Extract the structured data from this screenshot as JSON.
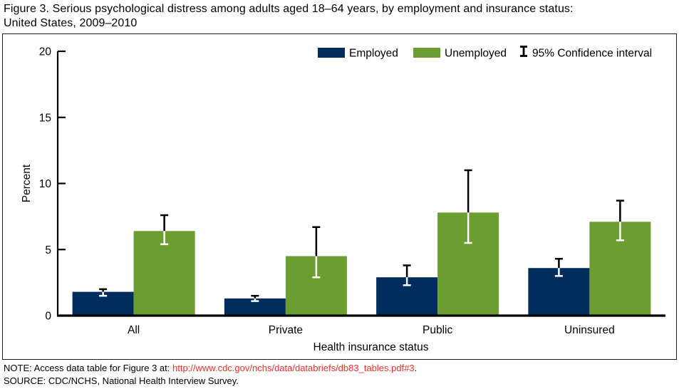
{
  "figure": {
    "title_line1": "Figure 3. Serious psychological distress among adults aged 18–64 years, by employment and insurance status:",
    "title_line2": "United States, 2009–2010"
  },
  "chart_data": {
    "type": "bar",
    "categories": [
      "All",
      "Private",
      "Public",
      "Uninsured"
    ],
    "series": [
      {
        "name": "Employed",
        "color": "#002d5c",
        "values": [
          1.8,
          1.3,
          2.9,
          3.6
        ],
        "ci_low": [
          1.5,
          1.1,
          2.3,
          3.0
        ],
        "ci_high": [
          2.0,
          1.5,
          3.8,
          4.3
        ]
      },
      {
        "name": "Unemployed",
        "color": "#6b9d30",
        "values": [
          6.4,
          4.5,
          7.8,
          7.1
        ],
        "ci_low": [
          5.4,
          2.9,
          5.5,
          5.7
        ],
        "ci_high": [
          7.6,
          6.7,
          11.0,
          8.7
        ]
      }
    ],
    "title": "",
    "xlabel": "Health insurance status",
    "ylabel": "Percent",
    "ylim": [
      0,
      20
    ],
    "yticks": [
      0,
      5,
      10,
      15,
      20
    ],
    "grid": false,
    "legend": {
      "position": "top-inside",
      "ci_label": "95% Confidence interval"
    },
    "errorbar_color_above_bar": "#000000",
    "errorbar_color_inside_bar": "#ffffff",
    "axis_color": "#000000"
  },
  "notes": {
    "note_prefix": "NOTE: Access data table for Figure 3 at: ",
    "note_link": "http://www.cdc.gov/nchs/data/databriefs/db83_tables.pdf#3",
    "note_suffix": ".",
    "source": "SOURCE: CDC/NCHS, National Health Interview Survey.",
    "link_color": "#e8312a"
  }
}
